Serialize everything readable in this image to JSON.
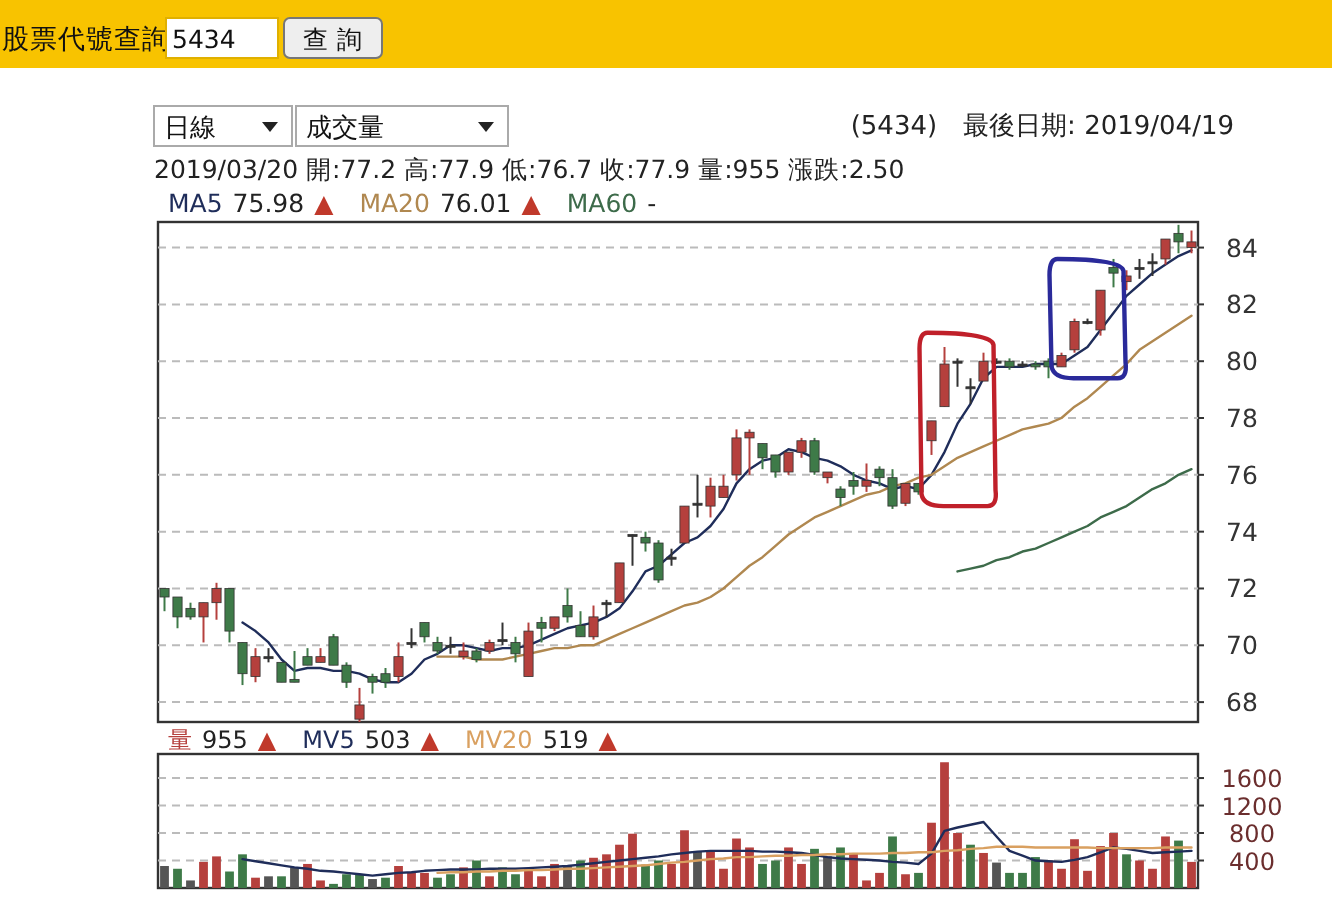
{
  "chart_data": [
    {
      "type": "candlestick",
      "subtitle": "2019/03/20  開:77.2  高:77.9  低:76.7  收:77.9  量:955  漲跌:2.50",
      "annotations": [
        "股票代號查詢",
        "5434",
        "查 詢",
        "日線",
        "成交量",
        "(5434)　最後日期: 2019/04/19",
        "75.98 ▲",
        "76.01 ▲",
        "-"
      ],
      "categories": [
        null,
        null,
        null,
        null,
        null,
        null,
        null,
        null,
        null,
        null,
        null,
        null,
        null,
        null,
        null,
        null,
        null,
        null,
        null,
        null,
        null,
        null,
        null,
        null,
        null,
        null,
        null,
        null,
        null,
        null,
        null,
        null,
        null,
        null,
        null,
        null,
        null,
        null,
        null,
        null,
        null,
        null,
        null,
        null,
        null,
        null,
        null,
        null,
        null,
        null,
        null,
        null,
        null,
        null,
        null,
        null,
        null,
        null,
        null,
        null,
        null,
        null,
        null,
        null,
        null,
        null,
        null,
        null,
        null,
        null,
        null,
        null,
        null,
        null,
        null,
        null,
        null,
        null,
        null,
        null
      ],
      "series": [
        {
          "type": "candlestick",
          "ohlc": [
            [
              72.0,
              72.0,
              71.2,
              71.7
            ],
            [
              71.7,
              71.7,
              70.6,
              71.0
            ],
            [
              71.3,
              71.5,
              70.9,
              71.0
            ],
            [
              71.0,
              71.5,
              70.1,
              71.5
            ],
            [
              71.5,
              72.2,
              70.9,
              72.0
            ],
            [
              72.0,
              72.0,
              70.1,
              70.5
            ],
            [
              70.1,
              70.1,
              68.6,
              69.0
            ],
            [
              68.9,
              69.9,
              68.7,
              69.6
            ],
            [
              69.6,
              69.9,
              69.4,
              69.6
            ],
            [
              69.4,
              69.4,
              68.7,
              68.7
            ],
            [
              68.8,
              69.8,
              68.7,
              68.7
            ],
            [
              69.6,
              69.9,
              69.3,
              69.3
            ],
            [
              69.4,
              69.9,
              69.4,
              69.6
            ],
            [
              70.3,
              70.4,
              69.3,
              69.3
            ],
            [
              69.3,
              69.4,
              68.5,
              68.7
            ],
            [
              67.4,
              68.5,
              67.3,
              67.9
            ],
            [
              68.9,
              69.0,
              68.3,
              68.7
            ],
            [
              69.0,
              69.2,
              68.5,
              68.7
            ],
            [
              68.9,
              70.1,
              68.7,
              69.6
            ],
            [
              70.1,
              70.6,
              69.9,
              70.1
            ],
            [
              70.8,
              70.8,
              70.1,
              70.3
            ],
            [
              70.1,
              70.3,
              69.7,
              69.8
            ],
            [
              70.0,
              70.3,
              69.7,
              70.0
            ],
            [
              69.6,
              70.1,
              69.5,
              69.8
            ],
            [
              69.8,
              69.9,
              69.4,
              69.5
            ],
            [
              69.8,
              70.2,
              69.7,
              70.1
            ],
            [
              70.2,
              70.8,
              70.0,
              70.2
            ],
            [
              70.1,
              70.3,
              69.4,
              69.7
            ],
            [
              68.9,
              70.8,
              68.9,
              70.5
            ],
            [
              70.8,
              71.0,
              70.1,
              70.6
            ],
            [
              70.6,
              71.0,
              70.5,
              71.0
            ],
            [
              71.4,
              72.0,
              70.8,
              71.0
            ],
            [
              70.7,
              71.2,
              70.3,
              70.3
            ],
            [
              70.3,
              71.4,
              70.2,
              71.0
            ],
            [
              71.5,
              71.6,
              71.0,
              71.5
            ],
            [
              71.5,
              72.9,
              71.5,
              72.9
            ],
            [
              73.9,
              73.9,
              72.8,
              73.9
            ],
            [
              73.8,
              74.0,
              73.3,
              73.6
            ],
            [
              73.6,
              73.7,
              72.2,
              72.3
            ],
            [
              73.1,
              73.4,
              72.8,
              73.1
            ],
            [
              73.6,
              74.9,
              73.6,
              74.9
            ],
            [
              75.0,
              76.0,
              74.5,
              75.0
            ],
            [
              74.9,
              75.9,
              74.5,
              75.6
            ],
            [
              75.2,
              76.0,
              75.2,
              75.6
            ],
            [
              76.0,
              77.6,
              75.8,
              77.3
            ],
            [
              77.3,
              77.6,
              76.0,
              77.5
            ],
            [
              77.1,
              77.1,
              76.2,
              76.6
            ],
            [
              76.7,
              76.7,
              75.9,
              76.1
            ],
            [
              76.1,
              76.8,
              76.0,
              76.8
            ],
            [
              76.8,
              77.3,
              76.6,
              77.2
            ],
            [
              77.2,
              77.3,
              76.0,
              76.1
            ],
            [
              75.9,
              76.1,
              75.7,
              76.1
            ],
            [
              75.5,
              75.6,
              74.9,
              75.2
            ],
            [
              75.8,
              76.1,
              75.3,
              75.6
            ],
            [
              75.6,
              76.4,
              75.4,
              75.8
            ],
            [
              76.2,
              76.3,
              75.6,
              75.9
            ],
            [
              75.9,
              76.2,
              74.8,
              74.9
            ],
            [
              75.0,
              75.7,
              74.9,
              75.7
            ],
            [
              75.7,
              75.7,
              75.3,
              75.4
            ],
            [
              77.2,
              77.9,
              76.7,
              77.9
            ],
            [
              78.4,
              80.5,
              78.4,
              79.9
            ],
            [
              80.0,
              80.1,
              79.1,
              80.0
            ],
            [
              79.1,
              79.4,
              78.5,
              79.1
            ],
            [
              79.3,
              80.3,
              79.3,
              80.0
            ],
            [
              80.0,
              80.1,
              79.9,
              80.0
            ],
            [
              80.0,
              80.1,
              79.7,
              79.8
            ],
            [
              79.9,
              80.0,
              79.8,
              79.9
            ],
            [
              79.9,
              80.0,
              79.7,
              79.8
            ],
            [
              80.0,
              80.1,
              79.4,
              79.8
            ],
            [
              79.8,
              80.3,
              79.8,
              80.2
            ],
            [
              80.4,
              81.5,
              80.3,
              81.4
            ],
            [
              81.4,
              81.5,
              81.3,
              81.4
            ],
            [
              81.1,
              82.5,
              80.9,
              82.5
            ],
            [
              83.3,
              83.6,
              82.6,
              83.1
            ],
            [
              82.8,
              83.2,
              82.5,
              83.0
            ],
            [
              83.3,
              83.6,
              82.9,
              83.3
            ],
            [
              83.5,
              83.8,
              83.0,
              83.5
            ],
            [
              83.6,
              84.3,
              83.4,
              84.3
            ],
            [
              84.5,
              84.8,
              83.8,
              84.2
            ],
            [
              84.0,
              84.6,
              83.8,
              84.2
            ]
          ],
          "colors": [
            "#3e7a48",
            "#3e7a48",
            "#3e7a48",
            "#b5403d",
            "#b5403d",
            "#3e7a48",
            "#3e7a48",
            "#b5403d",
            "#333333",
            "#3e7a48",
            "#3e7a48",
            "#3e7a48",
            "#b5403d",
            "#3e7a48",
            "#3e7a48",
            "#b5403d",
            "#3e7a48",
            "#3e7a48",
            "#b5403d",
            "#333333",
            "#3e7a48",
            "#3e7a48",
            "#333333",
            "#b5403d",
            "#3e7a48",
            "#b5403d",
            "#333333",
            "#3e7a48",
            "#b5403d",
            "#3e7a48",
            "#b5403d",
            "#3e7a48",
            "#3e7a48",
            "#b5403d",
            "#333333",
            "#b5403d",
            "#333333",
            "#3e7a48",
            "#3e7a48",
            "#333333",
            "#b5403d",
            "#333333",
            "#b5403d",
            "#b5403d",
            "#b5403d",
            "#b5403d",
            "#3e7a48",
            "#3e7a48",
            "#b5403d",
            "#b5403d",
            "#3e7a48",
            "#b5403d",
            "#3e7a48",
            "#3e7a48",
            "#b5403d",
            "#3e7a48",
            "#3e7a48",
            "#b5403d",
            "#3e7a48",
            "#b5403d",
            "#b5403d",
            "#333333",
            "#333333",
            "#b5403d",
            "#333333",
            "#3e7a48",
            "#333333",
            "#3e7a48",
            "#3e7a48",
            "#b5403d",
            "#b5403d",
            "#333333",
            "#b5403d",
            "#3e7a48",
            "#b5403d",
            "#333333",
            "#333333",
            "#b5403d",
            "#3e7a48",
            "#b5403d"
          ]
        },
        {
          "type": "line",
          "name": "MA5",
          "color": "#1f2d5a",
          "values": [
            null,
            null,
            null,
            null,
            null,
            null,
            70.8,
            70.5,
            70.1,
            69.5,
            69.1,
            69.2,
            69.2,
            69.1,
            69.1,
            69.0,
            68.8,
            68.7,
            68.7,
            69.0,
            69.5,
            69.7,
            70.0,
            70.0,
            69.9,
            69.8,
            69.9,
            69.9,
            70.0,
            70.2,
            70.4,
            70.6,
            70.7,
            70.8,
            71.0,
            71.3,
            71.9,
            72.6,
            72.8,
            73.2,
            73.6,
            73.8,
            74.2,
            74.8,
            75.7,
            76.2,
            76.5,
            76.6,
            76.9,
            76.8,
            76.6,
            76.5,
            76.3,
            76.0,
            75.8,
            75.7,
            75.5,
            75.6,
            75.5,
            76.0,
            76.8,
            77.8,
            78.5,
            79.4,
            79.8,
            79.8,
            79.8,
            79.9,
            79.9,
            79.9,
            80.2,
            80.5,
            81.1,
            81.7,
            82.3,
            82.7,
            83.1,
            83.4,
            83.7,
            83.9
          ]
        },
        {
          "type": "line",
          "name": "MA20",
          "color": "#b08850",
          "values": [
            null,
            null,
            null,
            null,
            null,
            null,
            null,
            null,
            null,
            null,
            null,
            null,
            null,
            null,
            null,
            null,
            null,
            null,
            null,
            null,
            null,
            69.6,
            69.6,
            69.6,
            69.5,
            69.5,
            69.5,
            69.6,
            69.7,
            69.8,
            69.9,
            69.9,
            70.0,
            70.0,
            70.2,
            70.4,
            70.6,
            70.8,
            71.0,
            71.2,
            71.4,
            71.5,
            71.7,
            72.0,
            72.4,
            72.8,
            73.1,
            73.5,
            73.9,
            74.2,
            74.5,
            74.7,
            74.9,
            75.1,
            75.3,
            75.4,
            75.6,
            75.7,
            75.9,
            76.0,
            76.3,
            76.6,
            76.8,
            77.0,
            77.2,
            77.4,
            77.6,
            77.7,
            77.8,
            78.0,
            78.4,
            78.7,
            79.1,
            79.5,
            79.9,
            80.4,
            80.7,
            81.0,
            81.3,
            81.6
          ]
        },
        {
          "type": "line",
          "name": "MA60",
          "color": "#3d6b4a",
          "values": [
            null,
            null,
            null,
            null,
            null,
            null,
            null,
            null,
            null,
            null,
            null,
            null,
            null,
            null,
            null,
            null,
            null,
            null,
            null,
            null,
            null,
            null,
            null,
            null,
            null,
            null,
            null,
            null,
            null,
            null,
            null,
            null,
            null,
            null,
            null,
            null,
            null,
            null,
            null,
            null,
            null,
            null,
            null,
            null,
            null,
            null,
            null,
            null,
            null,
            null,
            null,
            null,
            null,
            null,
            null,
            null,
            null,
            null,
            null,
            null,
            null,
            72.6,
            72.7,
            72.8,
            73.0,
            73.1,
            73.3,
            73.4,
            73.6,
            73.8,
            74.0,
            74.2,
            74.5,
            74.7,
            74.9,
            75.2,
            75.5,
            75.7,
            76.0,
            76.2
          ]
        }
      ],
      "ylim": [
        67.3,
        84.9
      ],
      "yticks": [
        68,
        70,
        72,
        74,
        76,
        78,
        80,
        82,
        84
      ],
      "grid": "y",
      "legend": "top left",
      "tick_labels": "y"
    },
    {
      "type": "bar",
      "annotations": [
        "955 ▲",
        "503 ▲",
        "519 ▲"
      ],
      "categories": [
        null,
        null,
        null,
        null,
        null,
        null,
        null,
        null,
        null,
        null,
        null,
        null,
        null,
        null,
        null,
        null,
        null,
        null,
        null,
        null,
        null,
        null,
        null,
        null,
        null,
        null,
        null,
        null,
        null,
        null,
        null,
        null,
        null,
        null,
        null,
        null,
        null,
        null,
        null,
        null,
        null,
        null,
        null,
        null,
        null,
        null,
        null,
        null,
        null,
        null,
        null,
        null,
        null,
        null,
        null,
        null,
        null,
        null,
        null,
        null,
        null,
        null,
        null,
        null,
        null,
        null,
        null,
        null,
        null,
        null,
        null,
        null,
        null,
        null,
        null,
        null,
        null,
        null,
        null,
        null
      ],
      "series": [
        {
          "type": "bar",
          "name": "量",
          "color": "#b5403d",
          "values": [
            320,
            280,
            110,
            380,
            460,
            240,
            490,
            150,
            170,
            170,
            300,
            350,
            110,
            60,
            200,
            200,
            130,
            150,
            320,
            220,
            220,
            150,
            200,
            300,
            400,
            170,
            300,
            200,
            280,
            170,
            350,
            320,
            400,
            440,
            490,
            630,
            790,
            340,
            400,
            350,
            840,
            530,
            550,
            280,
            720,
            590,
            350,
            400,
            590,
            350,
            570,
            460,
            590,
            510,
            110,
            220,
            750,
            200,
            220,
            950,
            1830,
            800,
            630,
            510,
            370,
            220,
            220,
            450,
            400,
            280,
            710,
            250,
            610,
            800,
            490,
            400,
            280,
            750,
            690,
            380
          ],
          "colors": [
            "#555555",
            "#3e7a48",
            "#555555",
            "#b5403d",
            "#b5403d",
            "#3e7a48",
            "#3e7a48",
            "#b5403d",
            "#555555",
            "#3e7a48",
            "#555555",
            "#b5403d",
            "#b5403d",
            "#3e7a48",
            "#3e7a48",
            "#3e7a48",
            "#555555",
            "#3e7a48",
            "#b5403d",
            "#b5403d",
            "#b5403d",
            "#3e7a48",
            "#3e7a48",
            "#b5403d",
            "#3e7a48",
            "#b5403d",
            "#3e7a48",
            "#3e7a48",
            "#b5403d",
            "#b5403d",
            "#b5403d",
            "#555555",
            "#3e7a48",
            "#b5403d",
            "#b5403d",
            "#b5403d",
            "#b5403d",
            "#3e7a48",
            "#3e7a48",
            "#b5403d",
            "#b5403d",
            "#555555",
            "#b5403d",
            "#b5403d",
            "#b5403d",
            "#b5403d",
            "#3e7a48",
            "#3e7a48",
            "#b5403d",
            "#b5403d",
            "#3e7a48",
            "#555555",
            "#3e7a48",
            "#b5403d",
            "#b5403d",
            "#b5403d",
            "#3e7a48",
            "#b5403d",
            "#3e7a48",
            "#b5403d",
            "#b5403d",
            "#b5403d",
            "#3e7a48",
            "#b5403d",
            "#555555",
            "#3e7a48",
            "#3e7a48",
            "#3e7a48",
            "#b5403d",
            "#b5403d",
            "#b5403d",
            "#b5403d",
            "#b5403d",
            "#b5403d",
            "#3e7a48",
            "#b5403d",
            "#b5403d",
            "#b5403d",
            "#3e7a48",
            "#b5403d"
          ]
        },
        {
          "type": "line",
          "name": "MV5",
          "color": "#1f2d5a",
          "values": [
            null,
            null,
            null,
            null,
            null,
            null,
            420,
            390,
            360,
            330,
            300,
            280,
            250,
            240,
            220,
            200,
            180,
            200,
            220,
            230,
            250,
            260,
            270,
            270,
            270,
            280,
            280,
            280,
            290,
            300,
            310,
            320,
            340,
            360,
            380,
            400,
            420,
            440,
            460,
            490,
            510,
            530,
            540,
            540,
            540,
            540,
            530,
            530,
            520,
            510,
            480,
            450,
            430,
            420,
            410,
            400,
            380,
            370,
            350,
            500,
            830,
            880,
            920,
            960,
            750,
            540,
            470,
            400,
            390,
            380,
            410,
            450,
            520,
            590,
            570,
            540,
            510,
            520,
            530,
            540
          ]
        },
        {
          "type": "line",
          "name": "MV20",
          "color": "#d9a060",
          "values": [
            null,
            null,
            null,
            null,
            null,
            null,
            null,
            null,
            null,
            null,
            null,
            null,
            null,
            null,
            null,
            null,
            null,
            null,
            null,
            null,
            null,
            220,
            230,
            230,
            240,
            240,
            250,
            250,
            260,
            260,
            270,
            280,
            280,
            290,
            300,
            310,
            320,
            330,
            350,
            370,
            380,
            400,
            420,
            430,
            450,
            450,
            460,
            470,
            470,
            480,
            480,
            490,
            490,
            500,
            500,
            500,
            510,
            510,
            520,
            520,
            540,
            550,
            570,
            580,
            600,
            600,
            600,
            590,
            590,
            590,
            590,
            590,
            580,
            580,
            580,
            580,
            580,
            590,
            590,
            590
          ]
        }
      ],
      "ylim": [
        0,
        1950
      ],
      "yticks": [
        400,
        800,
        1200,
        1600
      ],
      "grid": "y",
      "legend": "top left",
      "tick_labels": "y"
    }
  ]
}
